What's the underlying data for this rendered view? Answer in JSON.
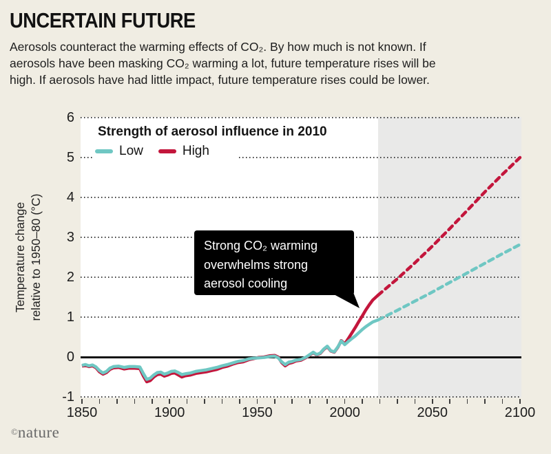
{
  "header": {
    "title": "UNCERTAIN FUTURE",
    "intro_lines": [
      "Aerosols counteract the warming effects of CO₂. By how much is not known. If",
      "aerosols have been masking CO₂ warming a lot, future temperature rises will be",
      "high. If aerosols have had little impact, future temperature rises could be lower."
    ]
  },
  "footer": {
    "symbol": "©",
    "brand": "nature"
  },
  "chart_data": {
    "type": "line",
    "legend_title": "Strength of aerosol influence in 2010",
    "legend": [
      {
        "label": "Low",
        "color": "#6fc7c3"
      },
      {
        "label": "High",
        "color": "#c3163c"
      }
    ],
    "ylabel_lines": [
      "Temperature change",
      "relative to 1950–80 (°C)"
    ],
    "y_ticks": [
      6,
      5,
      4,
      3,
      2,
      1,
      0,
      -1
    ],
    "gridline_values": [
      6,
      5,
      4,
      3,
      2,
      1
    ],
    "x_labeled_ticks": [
      1850,
      1900,
      1950,
      2000,
      2050,
      2100
    ],
    "x_minor_tick_step": 10,
    "x_range": [
      1850,
      2100
    ],
    "y_range": [
      -1,
      6
    ],
    "projection_start": 2019,
    "projection_band_color": "#e9e9e8",
    "grid_on": true,
    "annotation": {
      "lines": [
        "Strong CO₂ warming",
        "overwhelms strong",
        "aerosol cooling"
      ],
      "points_to_year": 2010
    },
    "series": [
      {
        "name": "High (historical)",
        "color": "#c3163c",
        "style": "solid",
        "points": [
          [
            1850,
            -0.23
          ],
          [
            1852,
            -0.21
          ],
          [
            1854,
            -0.24
          ],
          [
            1856,
            -0.22
          ],
          [
            1858,
            -0.27
          ],
          [
            1860,
            -0.37
          ],
          [
            1862,
            -0.43
          ],
          [
            1864,
            -0.39
          ],
          [
            1866,
            -0.31
          ],
          [
            1868,
            -0.27
          ],
          [
            1871,
            -0.26
          ],
          [
            1874,
            -0.3
          ],
          [
            1877,
            -0.28
          ],
          [
            1880,
            -0.28
          ],
          [
            1883,
            -0.29
          ],
          [
            1885,
            -0.47
          ],
          [
            1887,
            -0.62
          ],
          [
            1889,
            -0.59
          ],
          [
            1891,
            -0.5
          ],
          [
            1893,
            -0.44
          ],
          [
            1895,
            -0.43
          ],
          [
            1897,
            -0.48
          ],
          [
            1899,
            -0.45
          ],
          [
            1901,
            -0.41
          ],
          [
            1903,
            -0.4
          ],
          [
            1905,
            -0.45
          ],
          [
            1907,
            -0.5
          ],
          [
            1909,
            -0.47
          ],
          [
            1912,
            -0.45
          ],
          [
            1915,
            -0.41
          ],
          [
            1918,
            -0.39
          ],
          [
            1921,
            -0.37
          ],
          [
            1924,
            -0.34
          ],
          [
            1927,
            -0.31
          ],
          [
            1930,
            -0.26
          ],
          [
            1933,
            -0.23
          ],
          [
            1936,
            -0.18
          ],
          [
            1939,
            -0.14
          ],
          [
            1942,
            -0.12
          ],
          [
            1945,
            -0.07
          ],
          [
            1948,
            -0.04
          ],
          [
            1951,
            -0.01
          ],
          [
            1954,
            0.0
          ],
          [
            1957,
            0.03
          ],
          [
            1960,
            0.04
          ],
          [
            1962,
            0.0
          ],
          [
            1964,
            -0.14
          ],
          [
            1966,
            -0.22
          ],
          [
            1968,
            -0.16
          ],
          [
            1970,
            -0.14
          ],
          [
            1972,
            -0.1
          ],
          [
            1975,
            -0.08
          ],
          [
            1978,
            -0.01
          ],
          [
            1980,
            0.05
          ],
          [
            1982,
            0.11
          ],
          [
            1984,
            0.05
          ],
          [
            1986,
            0.09
          ],
          [
            1988,
            0.19
          ],
          [
            1990,
            0.26
          ],
          [
            1992,
            0.15
          ],
          [
            1994,
            0.12
          ],
          [
            1996,
            0.24
          ],
          [
            1998,
            0.41
          ],
          [
            2000,
            0.33
          ],
          [
            2002,
            0.46
          ],
          [
            2004,
            0.6
          ],
          [
            2006,
            0.74
          ],
          [
            2008,
            0.89
          ],
          [
            2010,
            1.03
          ],
          [
            2012,
            1.18
          ],
          [
            2014,
            1.31
          ],
          [
            2016,
            1.43
          ],
          [
            2019,
            1.55
          ]
        ]
      },
      {
        "name": "Low (historical)",
        "color": "#6fc7c3",
        "style": "solid",
        "points": [
          [
            1850,
            -0.21
          ],
          [
            1852,
            -0.19
          ],
          [
            1854,
            -0.22
          ],
          [
            1856,
            -0.2
          ],
          [
            1858,
            -0.25
          ],
          [
            1860,
            -0.34
          ],
          [
            1862,
            -0.4
          ],
          [
            1864,
            -0.36
          ],
          [
            1866,
            -0.28
          ],
          [
            1868,
            -0.24
          ],
          [
            1871,
            -0.23
          ],
          [
            1874,
            -0.26
          ],
          [
            1877,
            -0.24
          ],
          [
            1880,
            -0.24
          ],
          [
            1883,
            -0.25
          ],
          [
            1885,
            -0.41
          ],
          [
            1887,
            -0.56
          ],
          [
            1889,
            -0.53
          ],
          [
            1891,
            -0.45
          ],
          [
            1893,
            -0.39
          ],
          [
            1895,
            -0.38
          ],
          [
            1897,
            -0.43
          ],
          [
            1899,
            -0.4
          ],
          [
            1901,
            -0.36
          ],
          [
            1903,
            -0.35
          ],
          [
            1905,
            -0.39
          ],
          [
            1907,
            -0.44
          ],
          [
            1909,
            -0.42
          ],
          [
            1912,
            -0.4
          ],
          [
            1915,
            -0.36
          ],
          [
            1918,
            -0.34
          ],
          [
            1921,
            -0.32
          ],
          [
            1924,
            -0.29
          ],
          [
            1927,
            -0.26
          ],
          [
            1930,
            -0.22
          ],
          [
            1933,
            -0.19
          ],
          [
            1936,
            -0.15
          ],
          [
            1939,
            -0.11
          ],
          [
            1942,
            -0.09
          ],
          [
            1945,
            -0.05
          ],
          [
            1948,
            -0.03
          ],
          [
            1951,
            -0.02
          ],
          [
            1954,
            -0.01
          ],
          [
            1957,
            0.01
          ],
          [
            1960,
            0.02
          ],
          [
            1962,
            -0.02
          ],
          [
            1964,
            -0.12
          ],
          [
            1966,
            -0.19
          ],
          [
            1968,
            -0.13
          ],
          [
            1970,
            -0.11
          ],
          [
            1972,
            -0.08
          ],
          [
            1975,
            -0.06
          ],
          [
            1978,
            0.0
          ],
          [
            1980,
            0.06
          ],
          [
            1982,
            0.12
          ],
          [
            1984,
            0.06
          ],
          [
            1986,
            0.1
          ],
          [
            1988,
            0.2
          ],
          [
            1990,
            0.27
          ],
          [
            1992,
            0.16
          ],
          [
            1994,
            0.13
          ],
          [
            1996,
            0.25
          ],
          [
            1998,
            0.4
          ],
          [
            2000,
            0.31
          ],
          [
            2002,
            0.39
          ],
          [
            2004,
            0.46
          ],
          [
            2006,
            0.53
          ],
          [
            2008,
            0.61
          ],
          [
            2010,
            0.69
          ],
          [
            2012,
            0.76
          ],
          [
            2014,
            0.82
          ],
          [
            2016,
            0.88
          ],
          [
            2019,
            0.93
          ]
        ]
      },
      {
        "name": "High (projection)",
        "color": "#c3163c",
        "style": "dotted",
        "points": [
          [
            2019,
            1.55
          ],
          [
            2030,
            1.96
          ],
          [
            2040,
            2.36
          ],
          [
            2050,
            2.78
          ],
          [
            2060,
            3.22
          ],
          [
            2070,
            3.68
          ],
          [
            2080,
            4.14
          ],
          [
            2090,
            4.58
          ],
          [
            2100,
            5.0
          ]
        ]
      },
      {
        "name": "Low (projection)",
        "color": "#6fc7c3",
        "style": "dotted",
        "points": [
          [
            2019,
            0.93
          ],
          [
            2030,
            1.17
          ],
          [
            2040,
            1.4
          ],
          [
            2050,
            1.63
          ],
          [
            2060,
            1.87
          ],
          [
            2070,
            2.11
          ],
          [
            2080,
            2.35
          ],
          [
            2090,
            2.59
          ],
          [
            2100,
            2.82
          ]
        ]
      }
    ]
  }
}
